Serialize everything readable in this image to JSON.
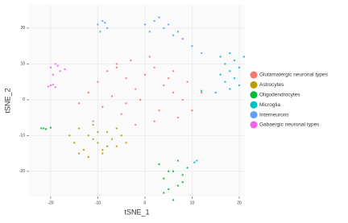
{
  "chart_data": {
    "type": "scatter",
    "x_label": "tSNE_1",
    "y_label": "tSNE_2",
    "xlim": [
      -24.6,
      21.2
    ],
    "ylim": [
      -27,
      26.5
    ],
    "xticks": [
      -20,
      -10,
      0,
      10,
      20
    ],
    "yticks": [
      -20,
      -10,
      0,
      10,
      20
    ],
    "grid": true,
    "legend": "right",
    "series": [
      {
        "name": "Glutamatergic neuronal types",
        "color": "#F8766D",
        "x": [
          -12,
          -10,
          -8,
          -6,
          -4,
          -2,
          0,
          2,
          4,
          6,
          8,
          -9,
          -5,
          -1,
          3,
          7,
          -11,
          -7,
          -3,
          1,
          5,
          -6,
          -4,
          12,
          9,
          -14,
          -2,
          2,
          6,
          10
        ],
        "values": [
          2,
          5,
          8,
          10,
          6,
          3,
          7,
          9,
          4,
          2,
          0,
          -2,
          -4,
          0,
          -3,
          -5,
          -6,
          1,
          11,
          12,
          6,
          9,
          -1,
          2,
          5,
          -1,
          -7,
          -6,
          8,
          -3
        ]
      },
      {
        "name": "Astrocytes",
        "color": "#B79F00",
        "x": [
          -16,
          -15,
          -14,
          -13,
          -12,
          -11,
          -10,
          -9,
          -8,
          -7,
          -6,
          -5,
          -4,
          -14,
          -12,
          -10,
          -8,
          -6,
          -11,
          -9
        ],
        "values": [
          -10,
          -12,
          -8,
          -14,
          -10,
          -7,
          -12,
          -15,
          -9,
          -11,
          -13,
          -10,
          -12,
          -15,
          -16,
          -9,
          -13,
          -8,
          -11,
          -14
        ]
      },
      {
        "name": "Oligodendrocytes",
        "color": "#00BA38",
        "x": [
          3,
          4,
          5,
          6,
          7,
          8,
          9,
          4,
          6,
          8,
          5,
          7,
          -22,
          -21,
          -20,
          -21.5
        ],
        "values": [
          -18,
          -22,
          -25,
          -20,
          -17,
          -23,
          -19,
          -26,
          -28,
          -21,
          -20,
          -24,
          -8,
          -8.2,
          -7.8,
          -8
        ]
      },
      {
        "name": "Microglia",
        "color": "#00BFC4",
        "x": [
          16,
          17,
          18,
          19,
          20,
          21,
          17,
          18,
          19,
          20,
          16,
          18,
          15,
          12,
          11,
          10.5
        ],
        "values": [
          12,
          10,
          13,
          11,
          9,
          12,
          5,
          3,
          6,
          4,
          7,
          8,
          2,
          2.5,
          -17,
          -17.5
        ]
      },
      {
        "name": "Interneurons",
        "color": "#619CFF",
        "x": [
          -10,
          -9,
          -8,
          -9.5,
          -8.5,
          0,
          2,
          4,
          6,
          8,
          3,
          5,
          7,
          1,
          10,
          12
        ],
        "values": [
          21,
          22,
          20,
          19,
          21.5,
          21,
          22,
          20,
          18,
          17,
          23,
          21,
          19,
          19,
          15,
          13
        ]
      },
      {
        "name": "Gabaergic neuronal types",
        "color": "#F564E3",
        "x": [
          -20,
          -19,
          -18,
          -19.5,
          -18.5,
          -17,
          -20,
          -19,
          -20.5,
          -19.5
        ],
        "values": [
          9,
          10,
          8,
          7,
          9.5,
          8.5,
          4,
          3.5,
          3.7,
          4.2
        ]
      }
    ]
  }
}
